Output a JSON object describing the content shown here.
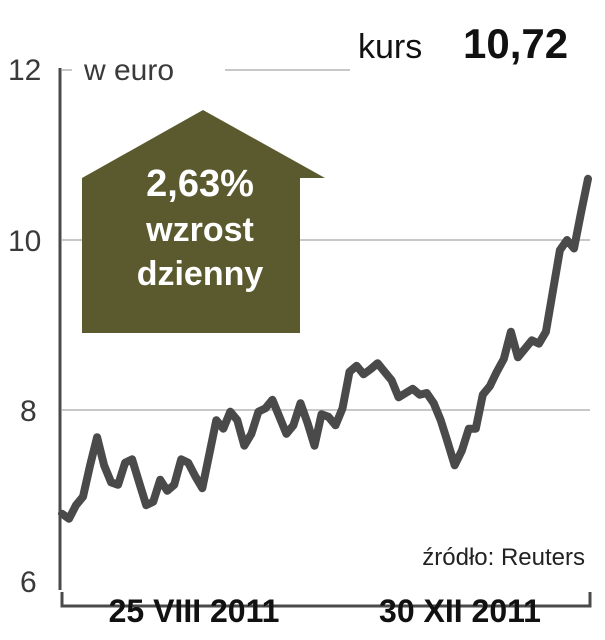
{
  "header": {
    "unit": "w euro",
    "kurs_label": "kurs",
    "kurs_value": "10,72"
  },
  "badge": {
    "percent": "2,63%",
    "line1": "wzrost",
    "line2": "dzienny",
    "color": "#5a5a2e"
  },
  "source": "źródło: Reuters",
  "colors": {
    "line": "#4a4a4a",
    "grid": "#b5b5b5",
    "arrow": "#5a5a2e"
  },
  "chart_data": {
    "type": "line",
    "x_labels": [
      "25 VIII 2011",
      "30 XII 2011"
    ],
    "y_ticks": [
      "12",
      "10",
      "8",
      "6"
    ],
    "ylim": [
      6,
      12
    ],
    "grid": true,
    "series": [
      {
        "values": [
          6.78,
          6.72,
          6.88,
          6.98,
          7.35,
          7.68,
          7.35,
          7.15,
          7.12,
          7.38,
          7.42,
          7.15,
          6.88,
          6.92,
          7.18,
          7.05,
          7.12,
          7.42,
          7.38,
          7.22,
          7.08,
          7.48,
          7.88,
          7.78,
          7.98,
          7.88,
          7.58,
          7.72,
          7.98,
          8.02,
          8.12,
          7.92,
          7.72,
          7.82,
          8.08,
          7.85,
          7.58,
          7.95,
          7.92,
          7.82,
          8.02,
          8.45,
          8.52,
          8.42,
          8.48,
          8.55,
          8.45,
          8.35,
          8.15,
          8.2,
          8.25,
          8.18,
          8.2,
          8.08,
          7.88,
          7.62,
          7.35,
          7.52,
          7.78,
          7.78,
          8.18,
          8.28,
          8.45,
          8.6,
          8.92,
          8.62,
          8.72,
          8.82,
          8.78,
          8.92,
          9.4,
          9.88,
          10.0,
          9.9,
          10.32,
          10.72
        ]
      }
    ]
  }
}
